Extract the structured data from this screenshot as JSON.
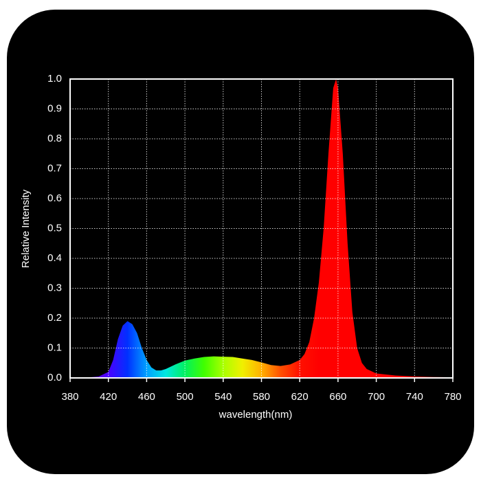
{
  "chart_data": {
    "type": "area",
    "xlabel": "wavelength(nm)",
    "ylabel": "Relative Intensity",
    "x": [
      380,
      390,
      400,
      410,
      420,
      425,
      430,
      435,
      440,
      445,
      450,
      455,
      460,
      465,
      470,
      475,
      480,
      490,
      500,
      510,
      520,
      530,
      540,
      550,
      560,
      570,
      580,
      590,
      600,
      610,
      620,
      625,
      630,
      635,
      640,
      645,
      650,
      655,
      658,
      660,
      665,
      670,
      675,
      680,
      685,
      690,
      700,
      720,
      740,
      760,
      780
    ],
    "values": [
      0.0,
      0.0,
      0.002,
      0.005,
      0.02,
      0.06,
      0.13,
      0.175,
      0.19,
      0.18,
      0.15,
      0.1,
      0.06,
      0.035,
      0.025,
      0.025,
      0.03,
      0.045,
      0.058,
      0.065,
      0.07,
      0.072,
      0.071,
      0.07,
      0.065,
      0.06,
      0.052,
      0.043,
      0.04,
      0.045,
      0.06,
      0.08,
      0.12,
      0.2,
      0.32,
      0.5,
      0.75,
      0.97,
      1.0,
      0.97,
      0.75,
      0.45,
      0.22,
      0.1,
      0.05,
      0.03,
      0.015,
      0.008,
      0.005,
      0.003,
      0.002
    ],
    "gradient": [
      "#3a0050",
      "#6a00c8",
      "#4a00ff",
      "#0030ff",
      "#00a0ff",
      "#00e8e0",
      "#00f060",
      "#40ff00",
      "#a8ff00",
      "#f0f000",
      "#ffb000",
      "#ff5000",
      "#ff1000",
      "#ff0000",
      "#ff0000",
      "#ff0000",
      "#ff0000",
      "#ff0000",
      "#ff0000",
      "#ff0000",
      "#ff0000"
    ],
    "xlim": [
      380,
      780
    ],
    "xticks": [
      380,
      420,
      460,
      500,
      540,
      580,
      620,
      660,
      700,
      740,
      780
    ],
    "ylim": [
      0,
      1
    ],
    "yticks": [
      {
        "value": 0,
        "label": "0.0"
      },
      0.1,
      0.2,
      0.3,
      0.4,
      0.5,
      0.6,
      0.7,
      0.8,
      0.9,
      {
        "value": 1,
        "label": "1.0"
      }
    ],
    "grid": true
  }
}
